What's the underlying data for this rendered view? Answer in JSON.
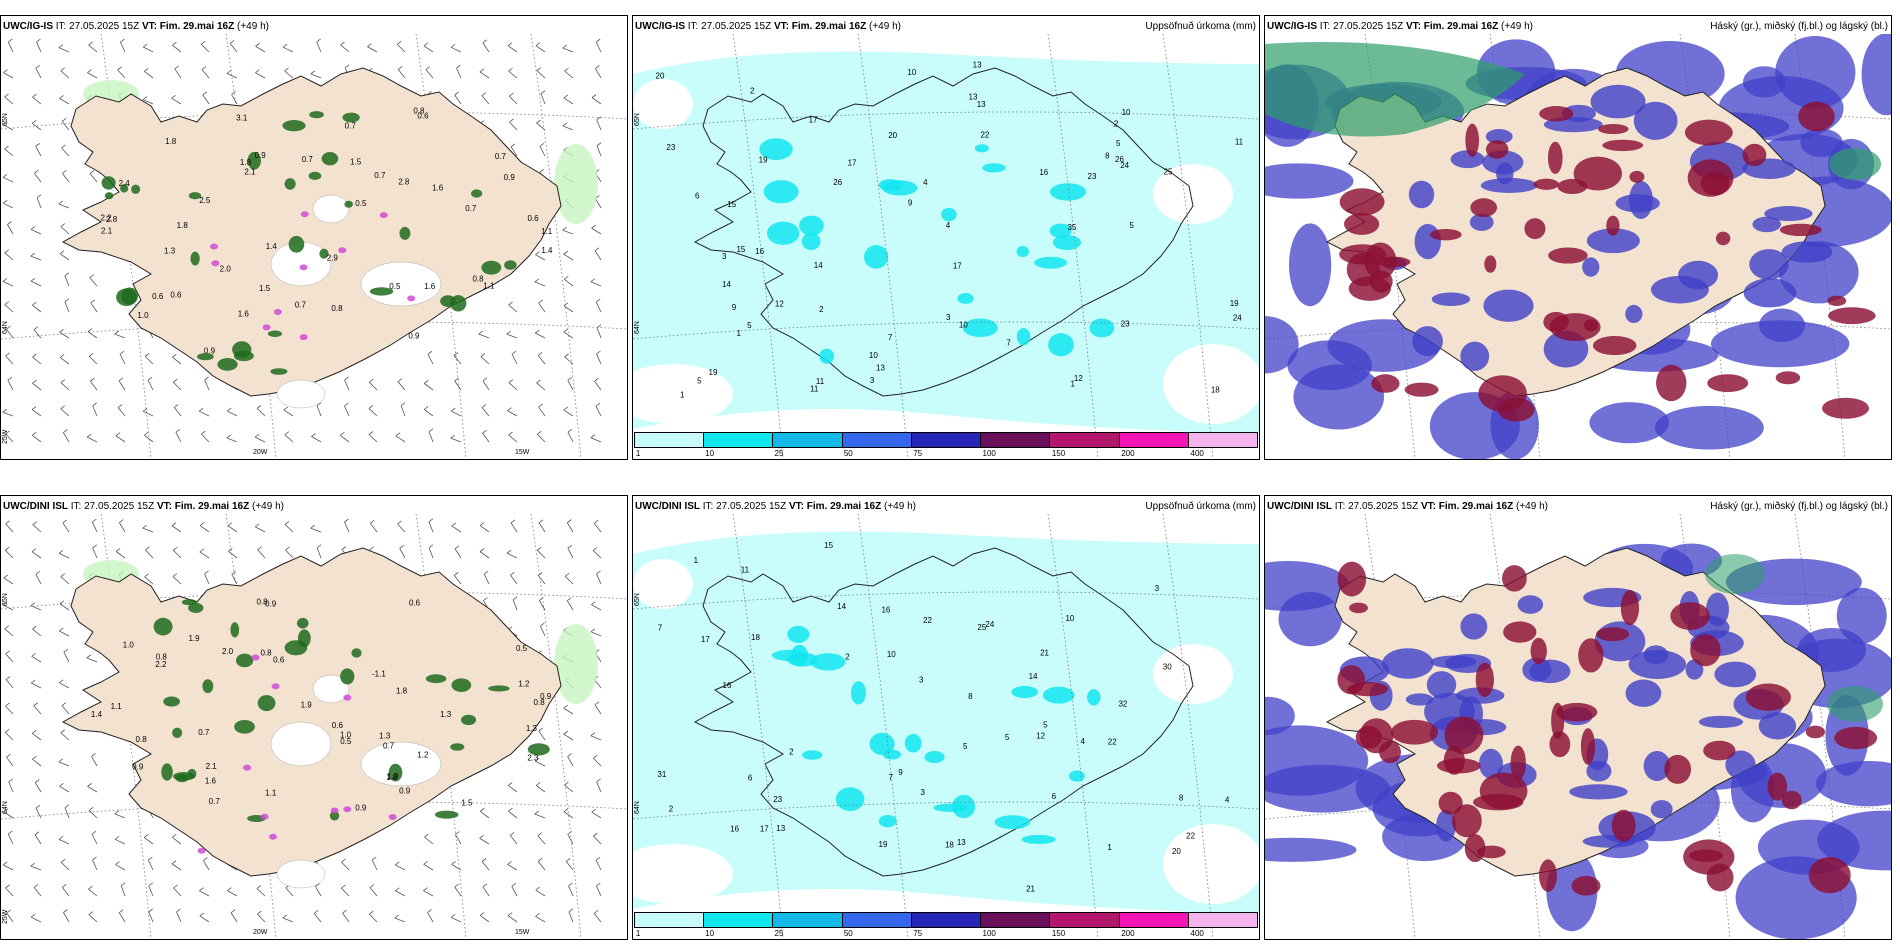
{
  "panels": [
    {
      "id": "p1",
      "header_model": "UWC/IG-IS",
      "header_it": " IT: 27.05.2025 15Z ",
      "header_vt": "VT: Fim. 29.mai 16Z",
      "header_lead": " (+49 h)",
      "right_title": "",
      "kind": "wind",
      "lon_labels": [
        "20W",
        "15W"
      ],
      "lat_labels": [
        "65N",
        "64N",
        "25W"
      ],
      "values": [
        "0.9",
        "1.6",
        "0.6",
        "2.8",
        "0.8",
        "2.1",
        "0.6",
        "2.8",
        "1.1",
        "1.4",
        "1.5",
        "0.6",
        "0.7",
        "2.5",
        "1.1",
        "0.7",
        "1.6",
        "1.0",
        "2.9",
        "2.0",
        "2.2",
        "3.1",
        "0.7",
        "1.5",
        "0.6",
        "0.5",
        "0.9",
        "1.3",
        "0.7",
        "1.8",
        "2.1",
        "1.4",
        "0.5",
        "0.9",
        "0.8",
        "2.4",
        "0.7",
        "0.8",
        "1.8",
        "0.7",
        "1.6",
        "1.8",
        "0.9"
      ]
    },
    {
      "id": "p2",
      "header_model": "UWC/IG-IS",
      "header_it": " IT: 27.05.2025 15Z ",
      "header_vt": "VT: Fim. 29.mai 16Z",
      "header_lead": " (+49 h)",
      "right_title": "Uppsöfnuð úrkoma (mm)",
      "kind": "precip",
      "lat_labels": [
        "65N",
        "64N"
      ],
      "colorbar_ticks": [
        "1",
        "10",
        "25",
        "50",
        "75",
        "100",
        "150",
        "200",
        "400"
      ],
      "values": [
        "1",
        "2",
        "5",
        "3",
        "1",
        "2",
        "7",
        "4",
        "23",
        "19",
        "25",
        "24",
        "16",
        "17",
        "13",
        "12",
        "11",
        "13",
        "9",
        "10",
        "5",
        "8",
        "23",
        "17",
        "18",
        "10",
        "19",
        "20",
        "26",
        "13",
        "11",
        "15",
        "22",
        "19",
        "23",
        "17",
        "24",
        "14",
        "12",
        "35",
        "9",
        "10",
        "5",
        "6",
        "7",
        "4",
        "3",
        "2",
        "1",
        "16",
        "20",
        "15",
        "11",
        "5",
        "3",
        "13",
        "14",
        "26",
        "10"
      ]
    },
    {
      "id": "p3",
      "header_model": "UWC/IG-IS",
      "header_it": " IT: 27.05.2025 15Z ",
      "header_vt": "VT: Fim. 29.mai 16Z",
      "header_lead": " (+49 h)",
      "right_title": "Háský (gr.), miðský (fj.bl.) og lágský (bl.)",
      "kind": "clouds"
    },
    {
      "id": "p4",
      "header_model": "UWC/DINI ISL",
      "header_it": " IT: 27.05.2025 15Z ",
      "header_vt": "VT: Fim. 29.mai 16Z",
      "header_lead": " (+49 h)",
      "right_title": "",
      "kind": "wind",
      "lon_labels": [
        "20W",
        "15W"
      ],
      "lat_labels": [
        "65N",
        "64N",
        "25W"
      ],
      "values": [
        "1.4",
        "0.8",
        "1.2",
        "0.5",
        "1.3",
        "0.9",
        "2.1",
        "1.1",
        "0.8",
        "1.3",
        "0.9",
        "0.6",
        "1.9",
        "1.8",
        "0.7",
        "1.0",
        "2.0",
        "2.2",
        "0.6",
        "0.9",
        "0.8",
        "0.7",
        "1.9",
        "1.8",
        "0.9",
        "1.2",
        "1.5",
        "1.0",
        "0.8",
        "-1.1",
        "0.9",
        "2.3",
        "1.6",
        "0.5",
        "0.8",
        "1.1",
        "1.0",
        "0.7",
        "0.6",
        "1.3"
      ]
    },
    {
      "id": "p5",
      "header_model": "UWC/DINI ISL",
      "header_it": " IT: 27.05.2025 15Z ",
      "header_vt": "VT: Fim. 29.mai 16Z",
      "header_lead": " (+49 h)",
      "right_title": "Uppsöfnuð úrkoma (mm)",
      "kind": "precip",
      "lat_labels": [
        "65N",
        "64N"
      ],
      "colorbar_ticks": [
        "1",
        "10",
        "25",
        "50",
        "75",
        "100",
        "150",
        "200",
        "400"
      ],
      "values": [
        "3",
        "2",
        "1",
        "23",
        "5",
        "3",
        "2",
        "22",
        "32",
        "25",
        "18",
        "16",
        "13",
        "21",
        "22",
        "14",
        "12",
        "17",
        "18",
        "20",
        "19",
        "16",
        "21",
        "31",
        "30",
        "14",
        "15",
        "10",
        "17",
        "24",
        "4",
        "5",
        "6",
        "7",
        "8",
        "9",
        "11",
        "7",
        "5",
        "4",
        "3",
        "2",
        "1",
        "16",
        "22",
        "13",
        "8",
        "6",
        "10"
      ]
    },
    {
      "id": "p6",
      "header_model": "UWC/DINI ISL",
      "header_it": " IT: 27.05.2025 15Z ",
      "header_vt": "VT: Fim. 29.mai 16Z",
      "header_lead": " (+49 h)",
      "right_title": "Háský (gr.), miðský (fj.bl.) og lágský (bl.)",
      "kind": "clouds"
    }
  ],
  "colors": {
    "land": "#f3e2d0",
    "coast": "#222222",
    "precip": [
      "#c8fdfb",
      "#12e6f0",
      "#15b9e8",
      "#3467ea",
      "#2726b8",
      "#6c0f5a",
      "#b3166d",
      "#f413b3",
      "#f6b4ef"
    ],
    "low_cloud": "#4040c8",
    "mid_cloud": "#8b1035",
    "high_cloud": "#2e9e6a",
    "wind_green_light": "#c8f5c0",
    "wind_green_dark": "#1d6a1d",
    "wind_magenta": "#d04ad8"
  }
}
